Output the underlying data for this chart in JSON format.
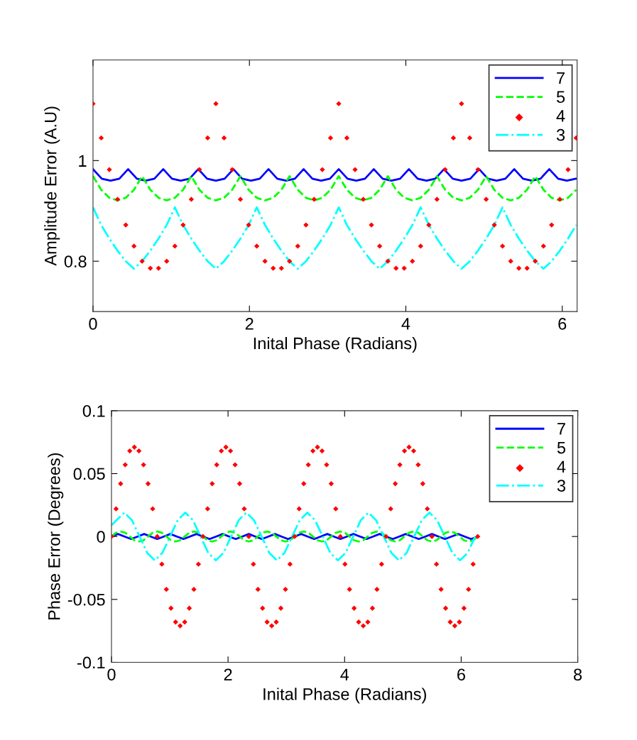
{
  "chart_data": [
    {
      "type": "line",
      "xlabel": "Inital Phase (Radians)",
      "ylabel": "Amplitude Error (A.U)",
      "xlim": [
        0,
        6.19
      ],
      "ylim": [
        0.7,
        1.2
      ],
      "xticks": [
        0,
        2,
        4,
        6
      ],
      "yticks": [
        0.8,
        1
      ],
      "grid": false,
      "legend": "top right",
      "x": [
        0,
        0.105,
        0.209,
        0.314,
        0.419,
        0.524,
        0.628,
        0.733,
        0.838,
        0.942,
        1.047,
        1.152,
        1.257,
        1.361,
        1.466,
        1.571,
        1.676,
        1.78,
        1.885,
        1.99,
        2.094,
        2.199,
        2.304,
        2.409,
        2.513,
        2.618,
        2.723,
        2.827,
        2.932,
        3.037,
        3.142,
        3.246,
        3.351,
        3.456,
        3.56,
        3.665,
        3.77,
        3.875,
        3.979,
        4.084,
        4.189,
        4.294,
        4.398,
        4.503,
        4.608,
        4.712,
        4.817,
        4.922,
        5.027,
        5.131,
        5.236,
        5.341,
        5.445,
        5.55,
        5.655,
        5.76,
        5.864,
        5.969,
        6.074,
        6.178
      ],
      "series": [
        {
          "name": "7",
          "color": "#0000ff",
          "line_style": "solid",
          "x": [
            0,
            0.112,
            0.224,
            0.337,
            0.449,
            0.561,
            0.673,
            0.785,
            0.898,
            1.01,
            1.122,
            1.234,
            1.346,
            1.459,
            1.571,
            1.683,
            1.795,
            1.907,
            2.02,
            2.132,
            2.244,
            2.356,
            2.468,
            2.581,
            2.693,
            2.805,
            2.917,
            3.029,
            3.142,
            3.254,
            3.366,
            3.478,
            3.59,
            3.703,
            3.815,
            3.927,
            4.039,
            4.151,
            4.264,
            4.376,
            4.488,
            4.6,
            4.712,
            4.825,
            4.937,
            5.049,
            5.161,
            5.273,
            5.386,
            5.498,
            5.61,
            5.722,
            5.834,
            5.947,
            6.059,
            6.171
          ],
          "values": [
            0.983,
            0.964,
            0.96,
            0.964,
            0.983,
            0.964,
            0.96,
            0.964,
            0.983,
            0.964,
            0.96,
            0.964,
            0.983,
            0.964,
            0.96,
            0.964,
            0.983,
            0.964,
            0.96,
            0.964,
            0.983,
            0.964,
            0.96,
            0.964,
            0.983,
            0.964,
            0.96,
            0.964,
            0.983,
            0.964,
            0.96,
            0.964,
            0.983,
            0.964,
            0.96,
            0.964,
            0.983,
            0.964,
            0.96,
            0.964,
            0.983,
            0.964,
            0.96,
            0.964,
            0.983,
            0.964,
            0.96,
            0.964,
            0.983,
            0.964,
            0.96,
            0.964,
            0.983,
            0.964,
            0.96,
            0.964
          ]
        },
        {
          "name": "5",
          "color": "#00ff00",
          "line_style": "dashed",
          "values": [
            0.969,
            0.942,
            0.926,
            0.921,
            0.926,
            0.942,
            0.969,
            0.942,
            0.926,
            0.921,
            0.926,
            0.942,
            0.969,
            0.942,
            0.926,
            0.921,
            0.926,
            0.942,
            0.969,
            0.942,
            0.926,
            0.921,
            0.926,
            0.942,
            0.969,
            0.942,
            0.926,
            0.921,
            0.926,
            0.942,
            0.969,
            0.942,
            0.926,
            0.921,
            0.926,
            0.942,
            0.969,
            0.942,
            0.926,
            0.921,
            0.926,
            0.942,
            0.969,
            0.942,
            0.926,
            0.921,
            0.926,
            0.942,
            0.969,
            0.942,
            0.926,
            0.921,
            0.926,
            0.942,
            0.969,
            0.942,
            0.926,
            0.921,
            0.926,
            0.942
          ]
        },
        {
          "name": "4",
          "color": "#ff0000",
          "type": "scatter",
          "marker": "diamond",
          "values": [
            1.113,
            1.045,
            0.982,
            0.923,
            0.872,
            0.83,
            0.8,
            0.786,
            0.786,
            0.8,
            0.83,
            0.872,
            0.923,
            0.982,
            1.045,
            1.113,
            1.045,
            0.982,
            0.923,
            0.872,
            0.83,
            0.8,
            0.786,
            0.786,
            0.8,
            0.83,
            0.872,
            0.923,
            0.982,
            1.045,
            1.113,
            1.045,
            0.982,
            0.923,
            0.872,
            0.83,
            0.8,
            0.786,
            0.786,
            0.8,
            0.83,
            0.872,
            0.923,
            0.982,
            1.045,
            1.113,
            1.045,
            0.982,
            0.923,
            0.872,
            0.83,
            0.8,
            0.786,
            0.786,
            0.8,
            0.83,
            0.872,
            0.923,
            0.982,
            1.045
          ]
        },
        {
          "name": "3",
          "color": "#00ffff",
          "line_style": "dashdot",
          "values": [
            0.907,
            0.872,
            0.845,
            0.821,
            0.8,
            0.785,
            0.8,
            0.821,
            0.845,
            0.872,
            0.907,
            0.872,
            0.845,
            0.821,
            0.8,
            0.785,
            0.8,
            0.821,
            0.845,
            0.872,
            0.907,
            0.872,
            0.845,
            0.821,
            0.8,
            0.785,
            0.8,
            0.821,
            0.845,
            0.872,
            0.907,
            0.872,
            0.845,
            0.821,
            0.8,
            0.785,
            0.8,
            0.821,
            0.845,
            0.872,
            0.907,
            0.872,
            0.845,
            0.821,
            0.8,
            0.785,
            0.8,
            0.821,
            0.845,
            0.872,
            0.907,
            0.872,
            0.845,
            0.821,
            0.8,
            0.785,
            0.8,
            0.821,
            0.845,
            0.872
          ]
        }
      ]
    },
    {
      "type": "line",
      "xlabel": "Inital Phase (Radians)",
      "ylabel": "Phase Error (Degrees)",
      "xlim": [
        0,
        8
      ],
      "ylim": [
        -0.1,
        0.1
      ],
      "xticks": [
        0,
        2,
        4,
        6,
        8
      ],
      "yticks": [
        -0.1,
        -0.05,
        0,
        0.05,
        0.1
      ],
      "grid": false,
      "legend": "top right",
      "x": [
        0,
        0.079,
        0.157,
        0.236,
        0.314,
        0.393,
        0.471,
        0.55,
        0.628,
        0.707,
        0.785,
        0.864,
        0.942,
        1.021,
        1.1,
        1.178,
        1.257,
        1.335,
        1.414,
        1.492,
        1.571,
        1.649,
        1.728,
        1.806,
        1.885,
        1.963,
        2.042,
        2.121,
        2.199,
        2.278,
        2.356,
        2.435,
        2.513,
        2.592,
        2.67,
        2.749,
        2.827,
        2.906,
        2.985,
        3.063,
        3.142,
        3.22,
        3.299,
        3.377,
        3.456,
        3.534,
        3.613,
        3.691,
        3.77,
        3.848,
        3.927,
        4.006,
        4.084,
        4.163,
        4.241,
        4.32,
        4.398,
        4.477,
        4.555,
        4.634,
        4.712,
        4.791,
        4.869,
        4.948,
        5.027,
        5.105,
        5.184,
        5.262,
        5.341,
        5.419,
        5.498,
        5.576,
        5.655,
        5.733,
        5.812,
        5.89,
        5.969,
        6.048,
        6.126,
        6.205,
        6.283
      ],
      "series": [
        {
          "name": "7",
          "color": "#0000ff",
          "line_style": "solid",
          "x": [
            0,
            0.112,
            0.224,
            0.337,
            0.449,
            0.561,
            0.673,
            0.785,
            0.898,
            1.01,
            1.122,
            1.234,
            1.346,
            1.459,
            1.571,
            1.683,
            1.795,
            1.907,
            2.02,
            2.132,
            2.244,
            2.356,
            2.468,
            2.581,
            2.693,
            2.805,
            2.917,
            3.029,
            3.142,
            3.254,
            3.366,
            3.478,
            3.59,
            3.703,
            3.815,
            3.927,
            4.039,
            4.151,
            4.264,
            4.376,
            4.488,
            4.6,
            4.712,
            4.825,
            4.937,
            5.049,
            5.161,
            5.273,
            5.386,
            5.498,
            5.61,
            5.722,
            5.834,
            5.947,
            6.059,
            6.171,
            6.283
          ],
          "values": [
            0,
            0.002,
            0,
            -0.002,
            0,
            0.002,
            0,
            -0.002,
            0,
            0.002,
            0,
            -0.002,
            0,
            0.002,
            0,
            -0.002,
            0,
            0.002,
            0,
            -0.002,
            0,
            0.002,
            0,
            -0.002,
            0,
            0.002,
            0,
            -0.002,
            0,
            0.002,
            0,
            -0.002,
            0,
            0.002,
            0,
            -0.002,
            0,
            0.002,
            0,
            -0.002,
            0,
            0.002,
            0,
            -0.002,
            0,
            0.002,
            0,
            -0.002,
            0,
            0.002,
            0,
            -0.002,
            0,
            0.002,
            0,
            -0.002,
            0
          ]
        },
        {
          "name": "5",
          "color": "#00ff00",
          "line_style": "dashed",
          "values": [
            0,
            0.003,
            0.004,
            0.003,
            0,
            -0.003,
            -0.004,
            -0.003,
            0,
            0.003,
            0.004,
            0.003,
            0,
            -0.003,
            -0.004,
            -0.003,
            0,
            0.003,
            0.004,
            0.003,
            0,
            -0.003,
            -0.004,
            -0.003,
            0,
            0.003,
            0.004,
            0.003,
            0,
            -0.003,
            -0.004,
            -0.003,
            0,
            0.003,
            0.004,
            0.003,
            0,
            -0.003,
            -0.004,
            -0.003,
            0,
            0.003,
            0.004,
            0.003,
            0,
            -0.003,
            -0.004,
            -0.003,
            0,
            0.003,
            0.004,
            0.003,
            0,
            -0.003,
            -0.004,
            -0.003,
            0,
            0.003,
            0.004,
            0.003,
            0,
            -0.003,
            -0.004,
            -0.003,
            0,
            0.003,
            0.004,
            0.003,
            0,
            -0.003,
            -0.004,
            -0.003,
            0,
            0.003,
            0.004,
            0.003,
            0,
            -0.003,
            -0.004,
            -0.003,
            0
          ]
        },
        {
          "name": "4",
          "color": "#ff0000",
          "type": "scatter",
          "marker": "diamond",
          "values": [
            0,
            0.022,
            0.042,
            0.057,
            0.068,
            0.071,
            0.068,
            0.057,
            0.042,
            0.022,
            0,
            -0.022,
            -0.042,
            -0.057,
            -0.068,
            -0.071,
            -0.068,
            -0.057,
            -0.042,
            -0.022,
            0,
            0.022,
            0.042,
            0.057,
            0.068,
            0.071,
            0.068,
            0.057,
            0.042,
            0.022,
            0,
            -0.022,
            -0.042,
            -0.057,
            -0.068,
            -0.071,
            -0.068,
            -0.057,
            -0.042,
            -0.022,
            0,
            0.022,
            0.042,
            0.057,
            0.068,
            0.071,
            0.068,
            0.057,
            0.042,
            0.022,
            0,
            -0.022,
            -0.042,
            -0.057,
            -0.068,
            -0.071,
            -0.068,
            -0.057,
            -0.042,
            -0.022,
            0,
            0.022,
            0.042,
            0.057,
            0.068,
            0.071,
            0.068,
            0.057,
            0.042,
            0.022,
            0,
            -0.022,
            -0.042,
            -0.057,
            -0.068,
            -0.071,
            -0.068,
            -0.057,
            -0.042,
            -0.022,
            0
          ]
        },
        {
          "name": "3",
          "color": "#00ffff",
          "line_style": "dashdot",
          "x": [
            0,
            0.22,
            0.351,
            0.482,
            0.613,
            0.744,
            0.874,
            1.005,
            1.136,
            1.267,
            1.398,
            1.529,
            1.66,
            1.791,
            1.922,
            2.053,
            2.184,
            2.314,
            2.445,
            2.576,
            2.707,
            2.838,
            2.969,
            3.1,
            3.231,
            3.362,
            3.493,
            3.624,
            3.754,
            3.885,
            4.016,
            4.147,
            4.278,
            4.409,
            4.54,
            4.671,
            4.802,
            4.933,
            5.064,
            5.194,
            5.325,
            5.456,
            5.587,
            5.718,
            5.849,
            5.98,
            6.111,
            6.241
          ],
          "values": [
            0.009,
            0.019,
            0.013,
            0,
            -0.013,
            -0.019,
            -0.013,
            0,
            0.013,
            0.019,
            0.013,
            0,
            -0.013,
            -0.019,
            -0.013,
            0,
            0.013,
            0.019,
            0.013,
            0,
            -0.013,
            -0.019,
            -0.013,
            0,
            0.013,
            0.019,
            0.013,
            0,
            -0.013,
            -0.019,
            -0.013,
            0,
            0.013,
            0.019,
            0.013,
            0,
            -0.013,
            -0.019,
            -0.013,
            0,
            0.013,
            0.019,
            0.013,
            0,
            -0.013,
            -0.019,
            -0.013,
            0
          ]
        }
      ]
    }
  ]
}
